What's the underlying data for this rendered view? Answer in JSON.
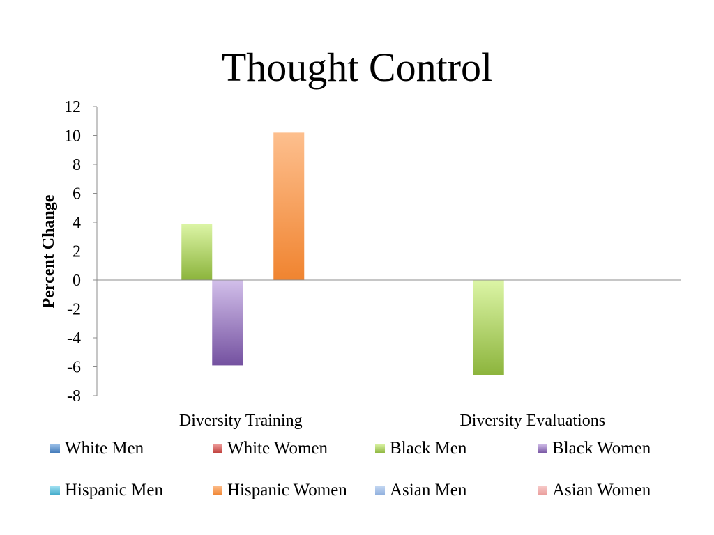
{
  "chart_data": {
    "type": "bar",
    "title": "Thought Control",
    "xlabel": "",
    "ylabel": "Percent Change",
    "ylim": [
      -8,
      12
    ],
    "ytick_values": [
      12,
      10,
      8,
      6,
      4,
      2,
      0,
      -2,
      -4,
      -6,
      -8
    ],
    "ytick_labels": [
      "12",
      "10",
      "8",
      "6",
      "4",
      "2",
      "0",
      "-2",
      "-4",
      "-6",
      "-8"
    ],
    "categories": [
      "Diversity Training",
      "Diversity Evaluations"
    ],
    "series": [
      {
        "name": "White Men",
        "values": [
          0,
          0
        ],
        "color_light": "#9fc3ea",
        "color_dark": "#3e77b7"
      },
      {
        "name": "White Women",
        "values": [
          0,
          0
        ],
        "color_light": "#ef9f9d",
        "color_dark": "#be3c39"
      },
      {
        "name": "Black Men",
        "values": [
          3.9,
          -6.6
        ],
        "color_light": "#dcf5a6",
        "color_dark": "#8cb43c"
      },
      {
        "name": "Black Women",
        "values": [
          -5.9,
          0
        ],
        "color_light": "#d2bfea",
        "color_dark": "#7451a0"
      },
      {
        "name": "Hispanic Men",
        "values": [
          0,
          0
        ],
        "color_light": "#a8e5f5",
        "color_dark": "#3da8c8"
      },
      {
        "name": "Hispanic Women",
        "values": [
          10.2,
          0
        ],
        "color_light": "#fdbf8e",
        "color_dark": "#f08430"
      },
      {
        "name": "Asian Men",
        "values": [
          0,
          0
        ],
        "color_light": "#c6d9f3",
        "color_dark": "#8eaedd"
      },
      {
        "name": "Asian Women",
        "values": [
          0,
          0
        ],
        "color_light": "#f8cccb",
        "color_dark": "#ea9c9a"
      }
    ],
    "legend_position": "bottom",
    "grid": false
  }
}
